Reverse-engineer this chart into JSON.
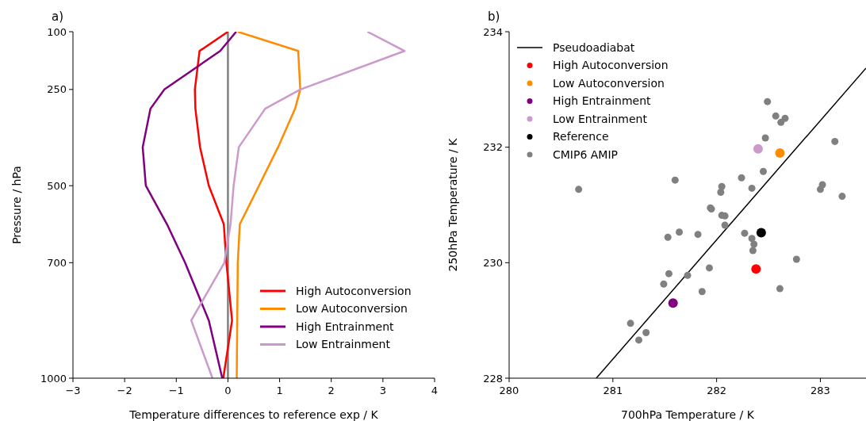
{
  "chart_data": [
    {
      "type": "line",
      "title": "a)",
      "xlabel": "Temperature differences to reference exp / K",
      "ylabel": "Pressure / hPa",
      "xlim": [
        -3,
        4
      ],
      "xticks": [
        {
          "value": -3,
          "label": "−3"
        },
        {
          "value": -2,
          "label": "−2"
        },
        {
          "value": -1,
          "label": "−1"
        },
        0,
        1,
        2,
        3,
        4
      ],
      "ylim": [
        1000,
        100
      ],
      "yticks": [
        100,
        250,
        500,
        700,
        1000
      ],
      "grid": false,
      "legend": "bottom right",
      "line_style": "solid",
      "marker": "none",
      "ref_lines": [
        {
          "axis": "x",
          "value": 0,
          "color": "#808080"
        }
      ],
      "series": [
        {
          "name": "High Autoconversion",
          "color": "#ff0000",
          "x": [
            0,
            -0.55,
            -0.64,
            -0.63,
            -0.54,
            -0.37,
            -0.08,
            -0.03,
            0.08,
            -0.09
          ],
          "values": [
            100,
            150,
            250,
            300,
            400,
            500,
            600,
            700,
            850,
            1000
          ]
        },
        {
          "name": "Low Autoconversion",
          "color": "#ff8c00",
          "x": [
            0.19,
            1.36,
            1.4,
            1.3,
            0.97,
            0.6,
            0.23,
            0.19,
            0.18,
            0.17
          ],
          "values": [
            100,
            150,
            250,
            300,
            400,
            500,
            600,
            700,
            850,
            1000
          ]
        },
        {
          "name": "High Entrainment",
          "color": "#800080",
          "x": [
            0.16,
            -0.15,
            -1.23,
            -1.5,
            -1.65,
            -1.59,
            -1.18,
            -0.83,
            -0.37,
            -0.11
          ],
          "values": [
            100,
            150,
            250,
            300,
            400,
            500,
            600,
            700,
            850,
            1000
          ]
        },
        {
          "name": "Low Entrainment",
          "color": "#cc99cc",
          "x": [
            2.7,
            3.42,
            1.4,
            0.72,
            0.21,
            0.11,
            0.05,
            -0.07,
            -0.71,
            -0.3
          ],
          "values": [
            100,
            150,
            250,
            300,
            400,
            500,
            600,
            700,
            850,
            1000
          ]
        }
      ]
    },
    {
      "type": "scatter",
      "title": "b)",
      "xlabel": "700hPa Temperature / K",
      "ylabel": "250hPa Temperature / K",
      "xlim": [
        280,
        283.44
      ],
      "xticks": [
        280,
        281,
        282,
        283
      ],
      "ylim": [
        228,
        234
      ],
      "yticks": [
        228,
        230,
        232,
        234
      ],
      "grid": false,
      "legend": "top left",
      "marker": "circle",
      "series": [
        {
          "name": "Pseudoadiabat",
          "type": "line",
          "marker": "none",
          "color": "#000000",
          "x": [
            280.84,
            283.44
          ],
          "values": [
            228,
            233.37
          ]
        },
        {
          "name": "High Autoconversion",
          "color": "#ff0000",
          "x": [
            282.38
          ],
          "values": [
            229.89
          ]
        },
        {
          "name": "Low Autoconversion",
          "color": "#ff8c00",
          "x": [
            282.61
          ],
          "values": [
            231.9
          ]
        },
        {
          "name": "High Entrainment",
          "color": "#800080",
          "x": [
            281.58
          ],
          "values": [
            229.3
          ]
        },
        {
          "name": "Low Entrainment",
          "color": "#cc99cc",
          "x": [
            282.4
          ],
          "values": [
            231.97
          ]
        },
        {
          "name": "Reference",
          "color": "#000000",
          "x": [
            282.43
          ],
          "values": [
            230.52
          ]
        },
        {
          "name": "CMIP6 AMIP",
          "color": "#808080",
          "x": [
            282.49,
            282.57,
            282.66,
            282.62,
            282.47,
            283.14,
            282.45,
            282.24,
            281.6,
            282.34,
            282.05,
            282.04,
            280.67,
            283.02,
            283.0,
            283.21,
            281.94,
            281.95,
            282.05,
            282.08,
            282.08,
            281.64,
            281.53,
            281.82,
            282.27,
            282.34,
            282.36,
            282.35,
            282.77,
            281.93,
            281.54,
            281.72,
            281.49,
            281.86,
            282.61,
            281.17,
            281.32,
            281.25
          ],
          "values": [
            232.79,
            232.54,
            232.5,
            232.43,
            232.16,
            232.1,
            231.58,
            231.47,
            231.43,
            231.29,
            231.32,
            231.22,
            231.27,
            231.35,
            231.27,
            231.15,
            230.95,
            230.93,
            230.82,
            230.81,
            230.65,
            230.53,
            230.44,
            230.49,
            230.51,
            230.42,
            230.32,
            230.21,
            230.06,
            229.91,
            229.81,
            229.78,
            229.63,
            229.5,
            229.55,
            228.95,
            228.79,
            228.66
          ]
        }
      ]
    }
  ]
}
